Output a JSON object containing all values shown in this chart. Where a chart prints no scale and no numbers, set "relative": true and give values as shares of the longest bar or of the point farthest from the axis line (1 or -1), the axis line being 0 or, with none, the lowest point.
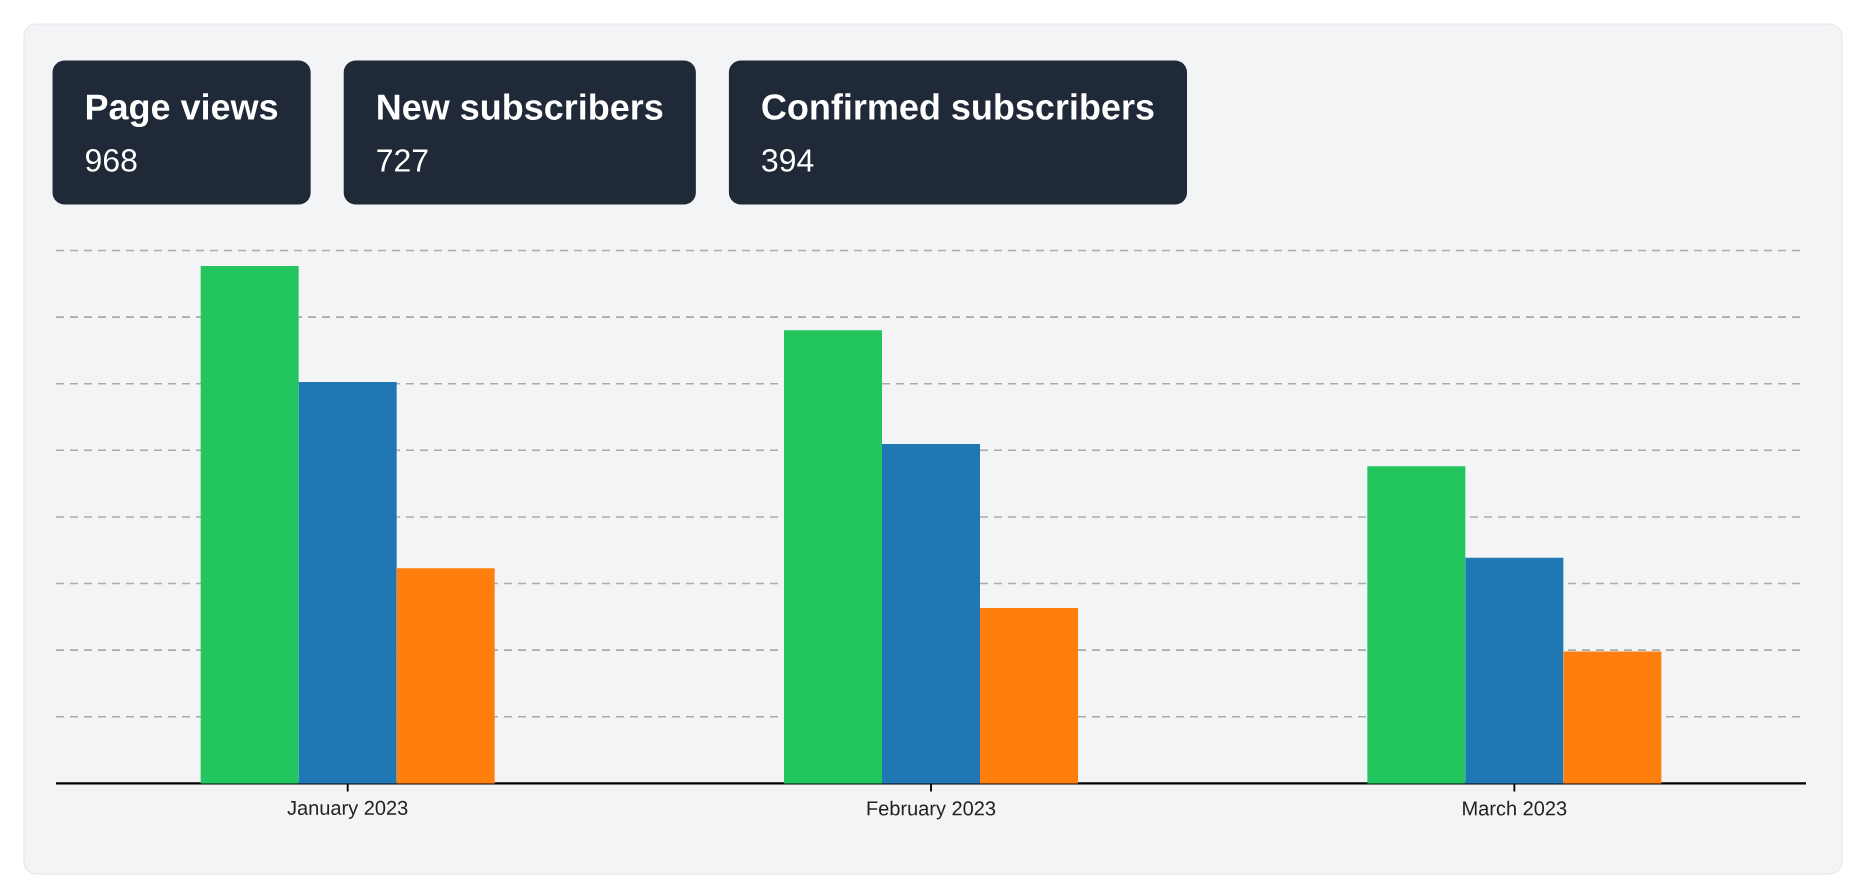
{
  "chart_data": {
    "type": "bar",
    "categories": [
      "January 2023",
      "February 2023",
      "March 2023"
    ],
    "series": [
      {
        "color": "#22c55e",
        "values": [
          1,
          0.876,
          0.613
        ]
      },
      {
        "color": "#1f77b4",
        "values": [
          0.776,
          0.656,
          0.436
        ]
      },
      {
        "color": "#ff7f0e",
        "values": [
          0.416,
          0.339,
          0.255
        ]
      }
    ],
    "relative": true,
    "grid": "y",
    "annotations": [
      "Page views",
      "968",
      "New subscribers",
      "727",
      "Confirmed subscribers",
      "394"
    ]
  }
}
